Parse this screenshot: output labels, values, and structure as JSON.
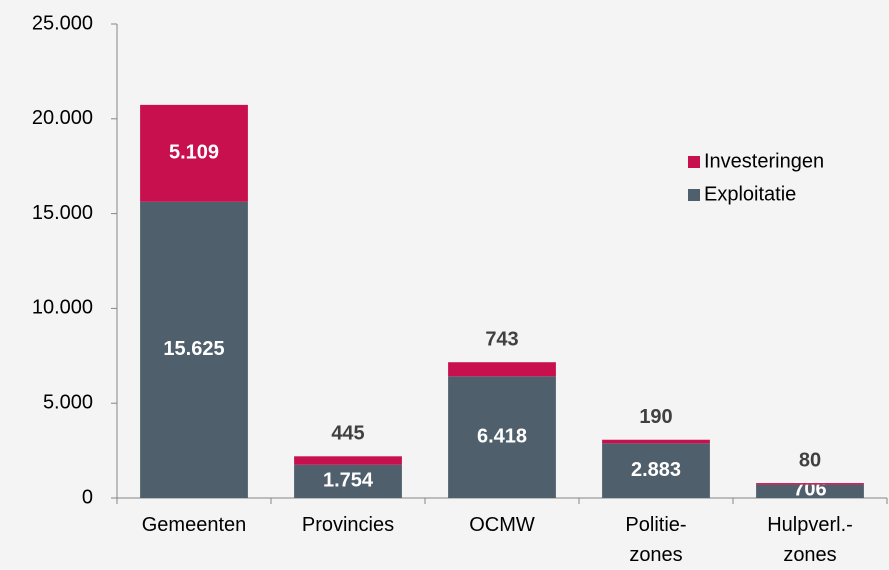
{
  "chart_data": {
    "type": "stacked-bar",
    "categories": [
      "Gemeenten",
      "Provincies",
      "OCMW",
      "Politie-\nzones",
      "Hulpverl.-\nzones"
    ],
    "series": [
      {
        "name": "Exploitatie",
        "color": "#4f5f6b",
        "values": [
          15625,
          1754,
          6418,
          2883,
          706
        ],
        "value_labels": [
          "15.625",
          "1.754",
          "6.418",
          "2.883",
          "706"
        ]
      },
      {
        "name": "Investeringen",
        "color": "#c8104f",
        "values": [
          5109,
          445,
          743,
          190,
          80
        ],
        "value_labels": [
          "5.109",
          "445",
          "743",
          "190",
          "80"
        ]
      }
    ],
    "ylim": [
      0,
      25000
    ],
    "yticks": [
      0,
      {
        "value": 5000,
        "label": "5.000"
      },
      {
        "value": 10000,
        "label": "10.000"
      },
      {
        "value": 15000,
        "label": "15.000"
      },
      {
        "value": 20000,
        "label": "20.000"
      },
      {
        "value": 25000,
        "label": "25.000"
      }
    ],
    "legend": "right"
  }
}
